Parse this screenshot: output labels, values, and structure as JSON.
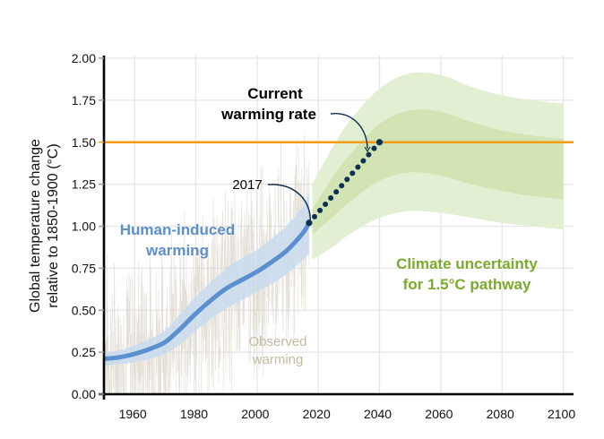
{
  "chart_data": {
    "type": "line",
    "title": "",
    "xlabel": "",
    "ylabel": "Global temperature change relative to 1850-1900 (°C)",
    "ylabel_lines": [
      "Global temperature change",
      "relative to 1850-1900 (°C)"
    ],
    "xlim": [
      1950,
      2103
    ],
    "ylim": [
      0,
      2.0
    ],
    "grid": true,
    "x_ticks": [
      1960,
      1980,
      2000,
      2020,
      2040,
      2060,
      2080,
      2100
    ],
    "x_tick_labels": [
      "1960",
      "1980",
      "2000",
      "2020",
      "2040",
      "2060",
      "2080",
      "2100"
    ],
    "y_ticks": [
      0,
      0.25,
      0.5,
      0.75,
      1.0,
      1.25,
      1.5,
      1.75,
      2.0
    ],
    "y_tick_labels": [
      "0.00",
      "0.25",
      "0.50",
      "0.75",
      "1.00",
      "1.25",
      "1.50",
      "1.75",
      "2.00"
    ],
    "colors": {
      "human": "#5b8fcf",
      "human_band": "#c9dbee",
      "observed": "#d8d3c8",
      "green_outer": "#e3efd2",
      "green_inner": "#d2e4b4",
      "threshold": "#f39c12",
      "dots": "#0d2f52",
      "green_text": "#7aab2a",
      "observed_text": "#c4b9a2"
    },
    "threshold": {
      "value": 1.5,
      "label": "1.50"
    },
    "series": [
      {
        "name": "Human-induced warming",
        "x": [
          1950,
          1955,
          1960,
          1965,
          1970,
          1975,
          1980,
          1985,
          1990,
          1995,
          2000,
          2005,
          2010,
          2015,
          2017
        ],
        "values": [
          0.21,
          0.22,
          0.24,
          0.27,
          0.31,
          0.39,
          0.48,
          0.56,
          0.63,
          0.68,
          0.73,
          0.79,
          0.86,
          0.96,
          1.02
        ],
        "band_low": [
          0.17,
          0.18,
          0.19,
          0.21,
          0.24,
          0.3,
          0.38,
          0.45,
          0.51,
          0.56,
          0.61,
          0.66,
          0.72,
          0.8,
          0.84
        ],
        "band_high": [
          0.25,
          0.26,
          0.29,
          0.33,
          0.38,
          0.48,
          0.58,
          0.67,
          0.75,
          0.81,
          0.86,
          0.93,
          1.01,
          1.12,
          1.2
        ]
      },
      {
        "name": "Current warming rate",
        "style": "dotted",
        "x": [
          2017,
          2040
        ],
        "values": [
          1.02,
          1.5
        ],
        "dot_count": 14
      },
      {
        "name": "Climate uncertainty for 1.5°C pathway",
        "x": [
          2018,
          2025,
          2030,
          2040,
          2050,
          2060,
          2070,
          2080,
          2090,
          2100
        ],
        "outer_low": [
          0.8,
          0.88,
          0.95,
          1.05,
          1.09,
          1.08,
          1.05,
          1.02,
          1.0,
          0.98
        ],
        "inner_low": [
          0.95,
          1.06,
          1.14,
          1.27,
          1.32,
          1.3,
          1.25,
          1.21,
          1.18,
          1.16
        ],
        "inner_high": [
          1.1,
          1.3,
          1.42,
          1.61,
          1.69,
          1.68,
          1.62,
          1.57,
          1.54,
          1.52
        ],
        "outer_high": [
          1.25,
          1.48,
          1.62,
          1.82,
          1.91,
          1.9,
          1.83,
          1.78,
          1.75,
          1.73
        ]
      }
    ],
    "observed": {
      "name": "Observed warming",
      "x_range": [
        1950,
        2017
      ]
    },
    "annotations": [
      {
        "id": "current-rate",
        "lines": [
          "Current",
          "warming rate"
        ]
      },
      {
        "id": "year-2017",
        "lines": [
          "2017"
        ]
      },
      {
        "id": "human-induced",
        "lines": [
          "Human-induced",
          "warming"
        ]
      },
      {
        "id": "observed",
        "lines": [
          "Observed",
          "warming"
        ]
      },
      {
        "id": "climate-uncertainty",
        "lines": [
          "Climate uncertainty",
          "for 1.5°C pathway"
        ]
      }
    ]
  }
}
